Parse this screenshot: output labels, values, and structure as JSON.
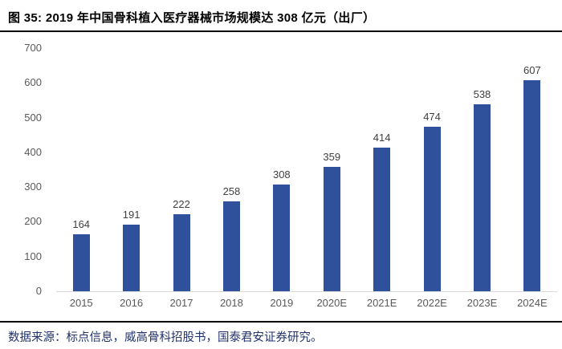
{
  "figure": {
    "title": "图 35:  2019 年中国骨科植入医疗器械市场规模达 308 亿元（出厂）",
    "source_note": "数据来源：标点信息，威高骨科招股书，国泰君安证券研究。"
  },
  "chart_data": {
    "type": "bar",
    "title": "2019 年中国骨科植入医疗器械市场规模达 308 亿元（出厂）",
    "categories": [
      "2015",
      "2016",
      "2017",
      "2018",
      "2019",
      "2020E",
      "2021E",
      "2022E",
      "2023E",
      "2024E"
    ],
    "values": [
      164,
      191,
      222,
      258,
      308,
      359,
      414,
      474,
      538,
      607
    ],
    "xlabel": "",
    "ylabel": "",
    "ylim": [
      0,
      700
    ],
    "yticks": [
      0,
      100,
      200,
      300,
      400,
      500,
      600,
      700
    ],
    "grid": false,
    "legend": "none",
    "bar_color": "#2F509B",
    "tick_color": "#595959",
    "data_label_color": "#404040",
    "baseline_color": "#d9d9d9",
    "rule_color": "#000000",
    "source_color": "#22336B"
  }
}
